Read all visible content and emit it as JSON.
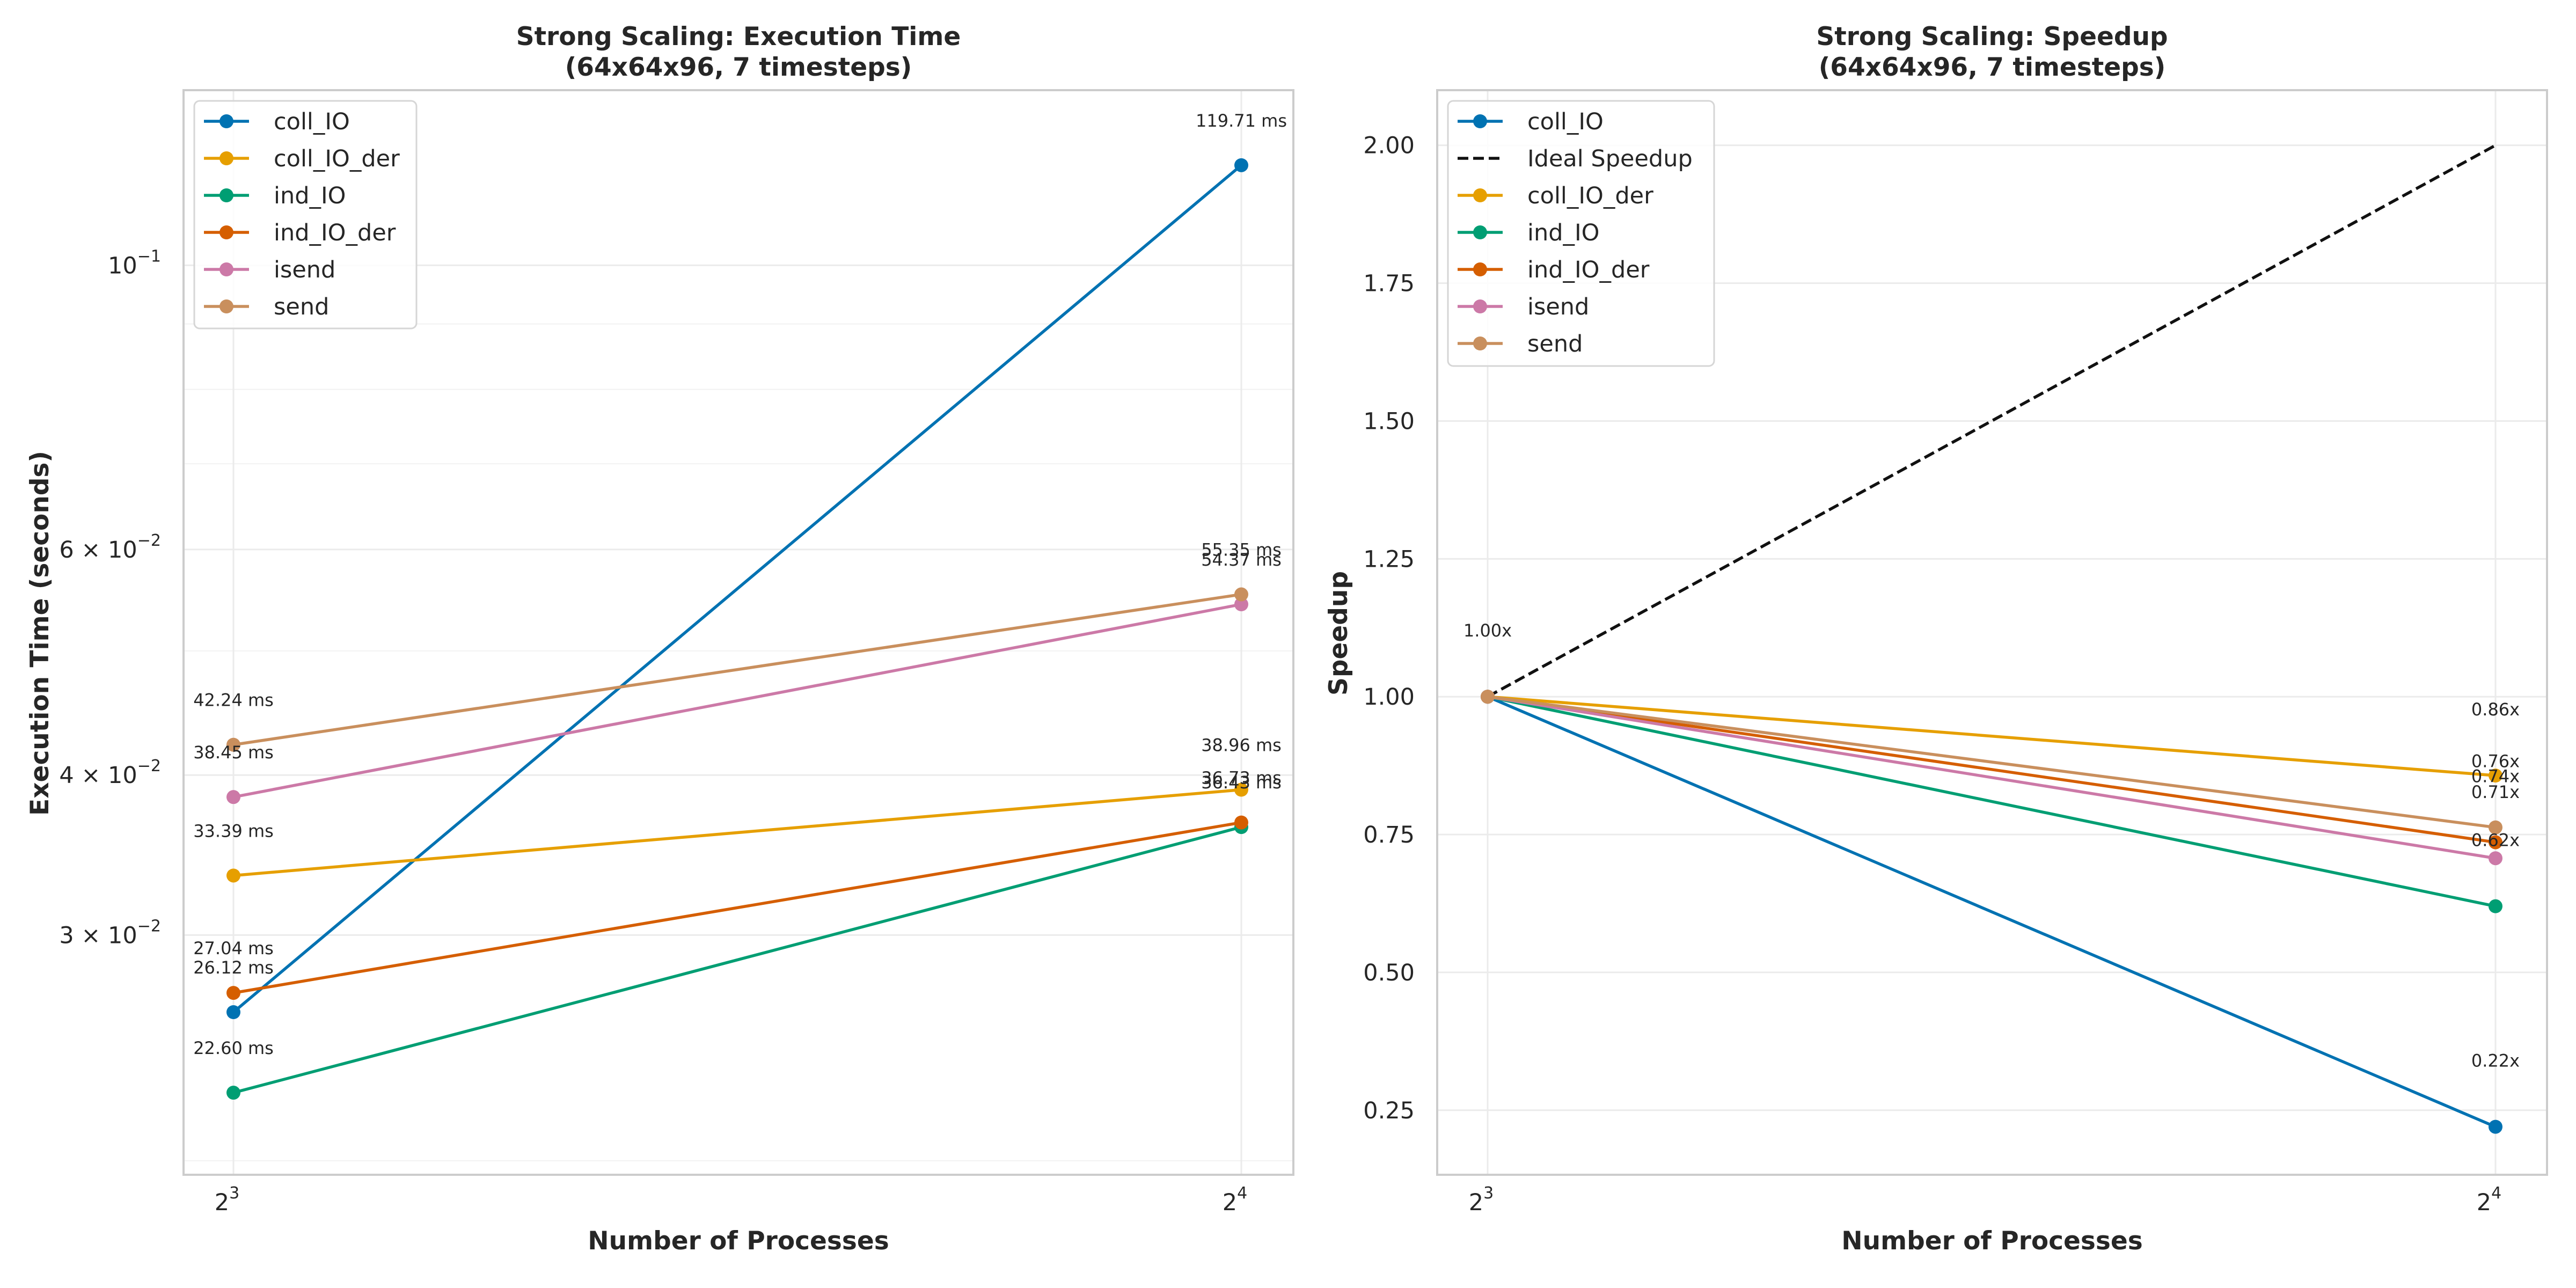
{
  "chart_data": [
    {
      "type": "line",
      "title": "Strong Scaling: Execution Time\n(64x64x96, 7 timesteps)",
      "xlabel": "Number of Processes",
      "ylabel": "Execution Time (seconds)",
      "xscale": "log2",
      "yscale": "log",
      "x": [
        8,
        16
      ],
      "x_tick_labels": [
        {
          "base": "2",
          "exp": "3"
        },
        {
          "base": "2",
          "exp": "4"
        }
      ],
      "y_tick_labels": [
        {
          "value": 0.03,
          "mant": "3 × 10",
          "exp": "−2"
        },
        {
          "value": 0.04,
          "mant": "4 × 10",
          "exp": "−2"
        },
        {
          "value": 0.06,
          "mant": "6 × 10",
          "exp": "−2"
        },
        {
          "value": 0.1,
          "mant": "10",
          "exp": "−1"
        }
      ],
      "ylim": [
        0.0195,
        0.137
      ],
      "grid": true,
      "legend": "top-left",
      "series": [
        {
          "name": "coll_IO",
          "color": "#0072B2",
          "values": [
            0.02612,
            0.11971
          ],
          "labels": [
            "26.12 ms",
            "119.71 ms"
          ]
        },
        {
          "name": "coll_IO_der",
          "color": "#E69F00",
          "values": [
            0.03339,
            0.03896
          ],
          "labels": [
            "33.39 ms",
            "38.96 ms"
          ]
        },
        {
          "name": "ind_IO",
          "color": "#009E73",
          "values": [
            0.0226,
            0.03643
          ],
          "labels": [
            "22.60 ms",
            "36.43 ms"
          ]
        },
        {
          "name": "ind_IO_der",
          "color": "#D55E00",
          "values": [
            0.02704,
            0.03673
          ],
          "labels": [
            "27.04 ms",
            "36.73 ms"
          ]
        },
        {
          "name": "isend",
          "color": "#CC79A7",
          "values": [
            0.03845,
            0.05437
          ],
          "labels": [
            "38.45 ms",
            "54.37 ms"
          ]
        },
        {
          "name": "send",
          "color": "#C98F5D",
          "values": [
            0.04224,
            0.05535
          ],
          "labels": [
            "42.24 ms",
            "55.35 ms"
          ]
        }
      ]
    },
    {
      "type": "line",
      "title": "Strong Scaling: Speedup\n(64x64x96, 7 timesteps)",
      "xlabel": "Number of Processes",
      "ylabel": "Speedup",
      "xscale": "log2",
      "yscale": "linear",
      "x": [
        8,
        16
      ],
      "x_tick_labels": [
        {
          "base": "2",
          "exp": "3"
        },
        {
          "base": "2",
          "exp": "4"
        }
      ],
      "y_ticks": [
        0.25,
        0.5,
        0.75,
        1.0,
        1.25,
        1.5,
        1.75,
        2.0
      ],
      "y_tick_labels": [
        "0.25",
        "0.50",
        "0.75",
        "1.00",
        "1.25",
        "1.50",
        "1.75",
        "2.00"
      ],
      "ylim": [
        0.133,
        2.1
      ],
      "grid": true,
      "legend": "top-left",
      "start_label": "1.00x",
      "ideal": {
        "name": "Ideal Speedup",
        "color": "#111111",
        "values": [
          1.0,
          2.0
        ]
      },
      "series": [
        {
          "name": "coll_IO",
          "color": "#0072B2",
          "values": [
            1.0,
            0.22
          ],
          "end_label": "0.22x"
        },
        {
          "name": "coll_IO_der",
          "color": "#E69F00",
          "values": [
            1.0,
            0.857
          ],
          "end_label": "0.86x"
        },
        {
          "name": "ind_IO",
          "color": "#009E73",
          "values": [
            1.0,
            0.62
          ],
          "end_label": "0.62x"
        },
        {
          "name": "ind_IO_der",
          "color": "#D55E00",
          "values": [
            1.0,
            0.736
          ],
          "end_label": "0.74x"
        },
        {
          "name": "isend",
          "color": "#CC79A7",
          "values": [
            1.0,
            0.707
          ],
          "end_label": "0.71x"
        },
        {
          "name": "send",
          "color": "#C98F5D",
          "values": [
            1.0,
            0.763
          ],
          "end_label": "0.76x"
        }
      ],
      "legend_order": [
        "coll_IO",
        "Ideal Speedup",
        "coll_IO_der",
        "ind_IO",
        "ind_IO_der",
        "isend",
        "send"
      ]
    }
  ]
}
